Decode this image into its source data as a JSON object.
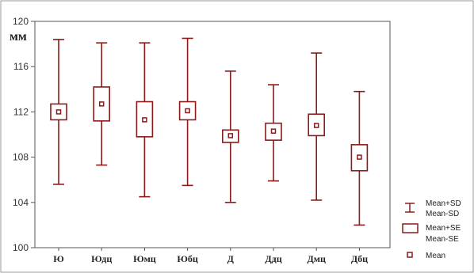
{
  "chart_data": {
    "type": "box",
    "unit_label": "мм",
    "ylim": [
      100,
      120
    ],
    "yticks": [
      100,
      104,
      108,
      112,
      116,
      120
    ],
    "ytick_labels": [
      "100",
      "104",
      "108",
      "112",
      "116",
      "120"
    ],
    "grid": false,
    "legend_position": "right",
    "categories": [
      "Ю",
      "Юдц",
      "Юмц",
      "Юбц",
      "Д",
      "Ддц",
      "Дмц",
      "Дбц"
    ],
    "mean": [
      112.0,
      112.7,
      111.3,
      112.1,
      109.9,
      110.3,
      110.8,
      108.0
    ],
    "mean_plus_se": [
      112.7,
      114.2,
      112.9,
      112.9,
      110.4,
      111.0,
      111.8,
      109.1
    ],
    "mean_minus_se": [
      111.3,
      111.2,
      109.8,
      111.3,
      109.3,
      109.5,
      109.9,
      106.8
    ],
    "mean_plus_sd": [
      118.4,
      118.1,
      118.1,
      118.5,
      115.6,
      114.4,
      117.2,
      113.8
    ],
    "mean_minus_sd": [
      105.6,
      107.3,
      104.5,
      105.5,
      104.0,
      105.9,
      104.2,
      102.0
    ],
    "legend": {
      "sd_label_top": "Mean+SD",
      "sd_label_bottom": "Mean-SD",
      "se_label_top": "Mean+SE",
      "se_label_bottom": "Mean-SE",
      "mean_label": "Mean"
    },
    "colors": {
      "series": "#8b1a1a",
      "frame": "#555555",
      "text": "#222222"
    }
  }
}
